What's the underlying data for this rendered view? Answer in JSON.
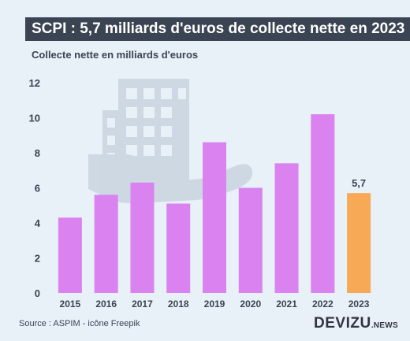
{
  "title": "SCPI : 5,7 milliards d'euros de collecte nette en 2023",
  "subtitle": "Collecte nette en milliards d'euros",
  "source": "Source : ASPIM - icône Freepik",
  "brand": {
    "main": "DEVIZU",
    "suffix": ".NEWS"
  },
  "colors": {
    "background": "#e8f0f8",
    "title_bg": "#3b4452",
    "bar": "#d982f0",
    "highlight": "#f7a955",
    "text": "#3b4452",
    "grid": "#cfd6df",
    "watermark": "#c8d2de"
  },
  "watermark_icon": "building-in-hand-icon",
  "chart_data": {
    "type": "bar",
    "categories": [
      "2015",
      "2016",
      "2017",
      "2018",
      "2019",
      "2020",
      "2021",
      "2022",
      "2023"
    ],
    "values": [
      4.3,
      5.6,
      6.3,
      5.1,
      8.6,
      6.0,
      7.4,
      10.2,
      5.7
    ],
    "highlight_index": 8,
    "data_labels": [
      {
        "index": 8,
        "text": "5,7"
      }
    ],
    "ylim": [
      0,
      12
    ],
    "yticks": [
      "0",
      "2",
      "4",
      "6",
      "8",
      "10",
      "12"
    ],
    "ylabel": "Collecte nette en milliards d'euros",
    "xlabel": "",
    "grid": false,
    "legend": "none"
  }
}
